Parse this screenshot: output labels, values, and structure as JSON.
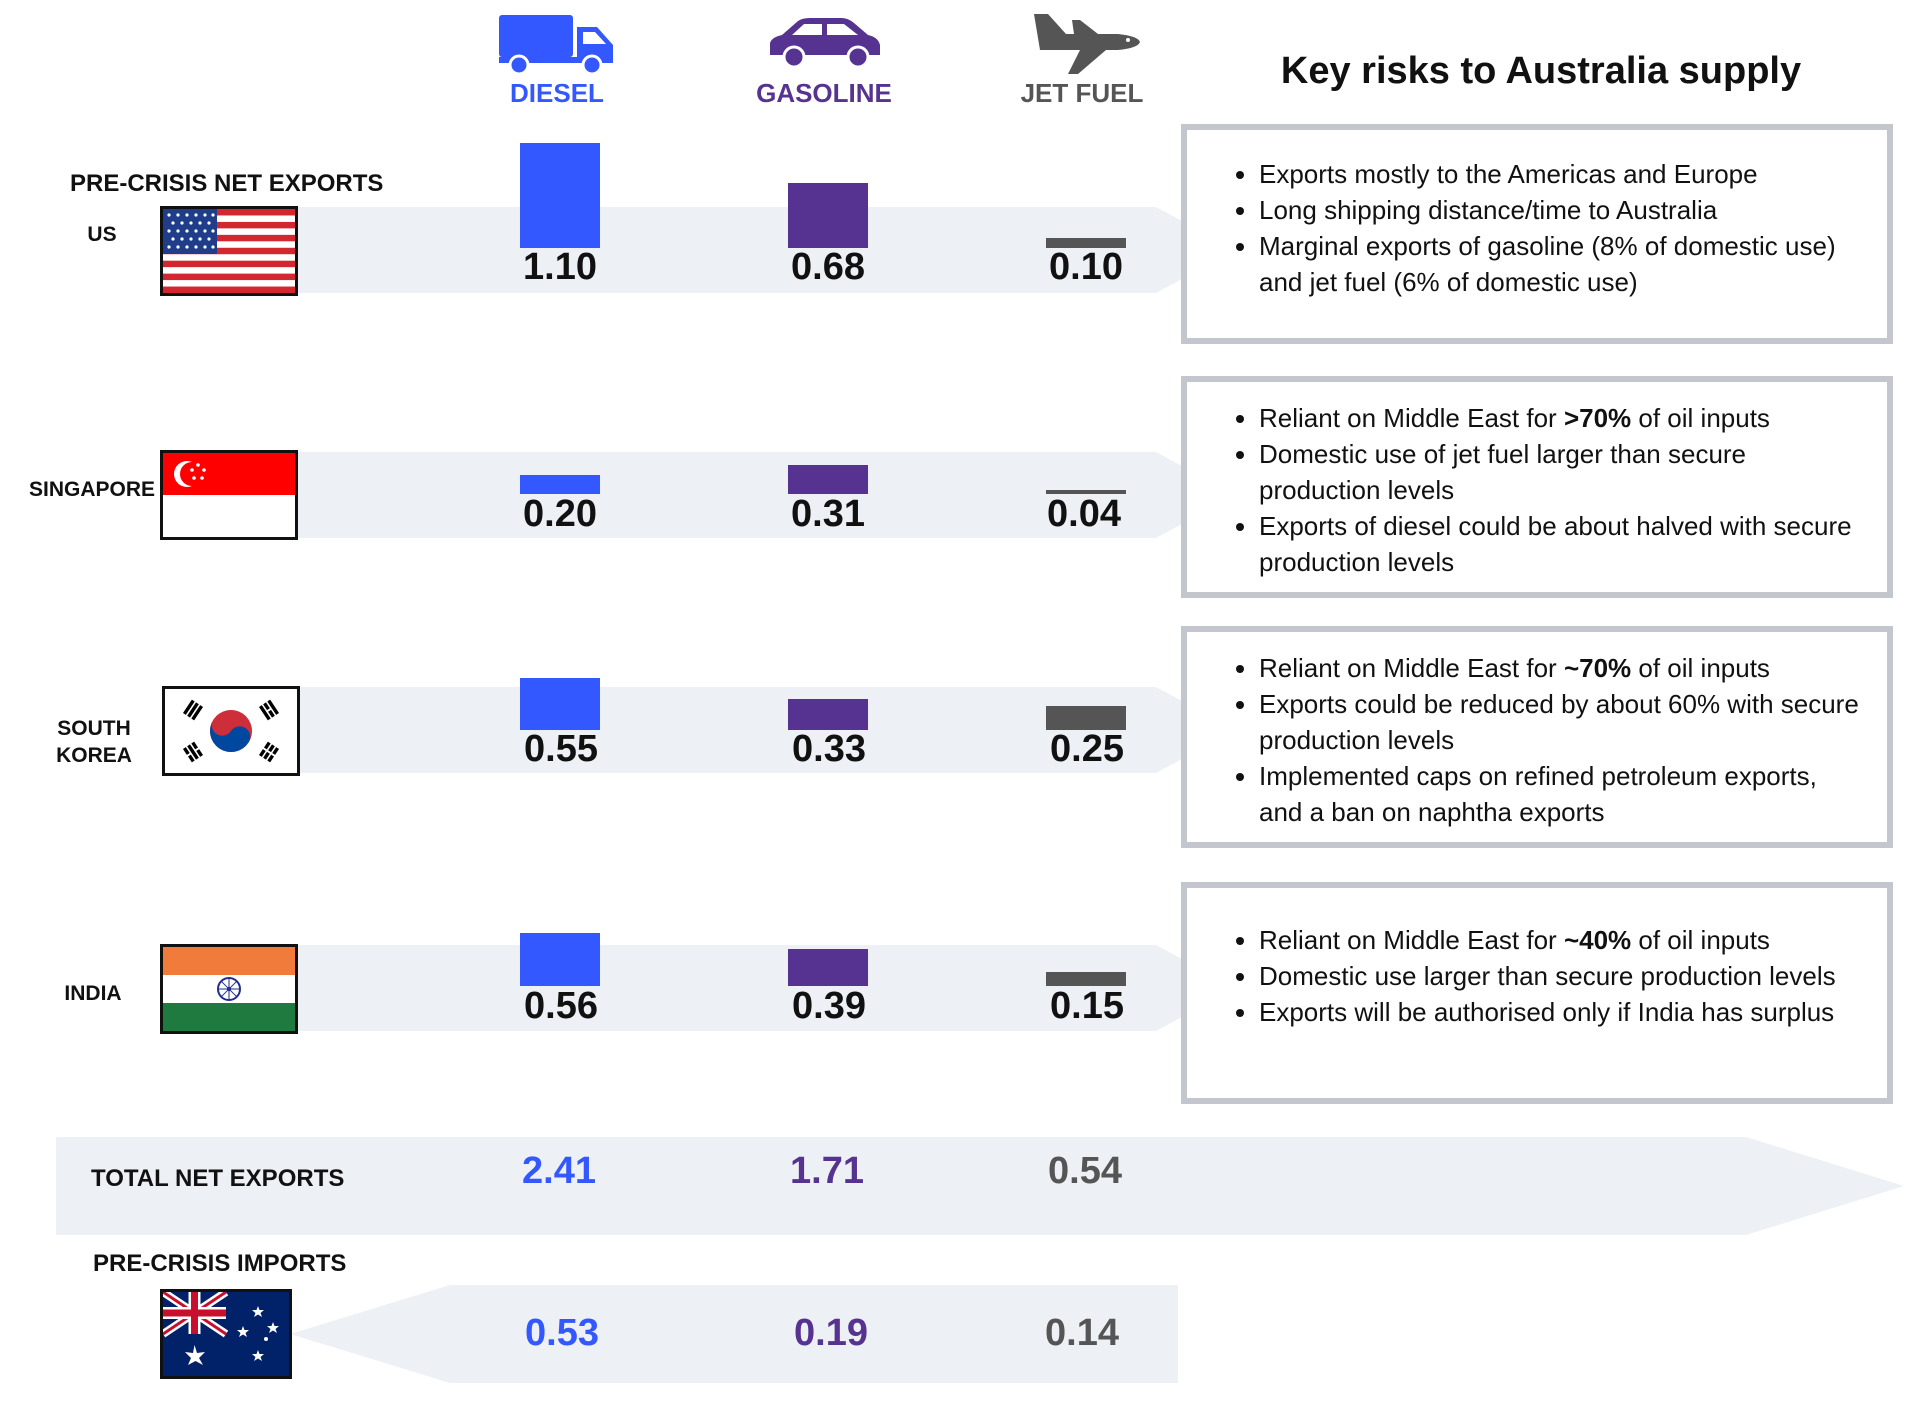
{
  "title": "Key risks to Australia supply",
  "colors": {
    "diesel": "#3358ff",
    "gasoline": "#563291",
    "jet_fuel": "#555555",
    "band": "#edf0f4",
    "box_border": "#c3c7cd"
  },
  "fuels": [
    {
      "key": "diesel",
      "label": "DIESEL",
      "icon": "truck-icon",
      "color": "#3358ff"
    },
    {
      "key": "gasoline",
      "label": "GASOLINE",
      "icon": "car-icon",
      "color": "#563291"
    },
    {
      "key": "jet_fuel",
      "label": "JET FUEL",
      "icon": "plane-icon",
      "color": "#555555"
    }
  ],
  "sections": {
    "net_exports_label": "PRE-CRISIS NET EXPORTS",
    "total_label": "TOTAL NET EXPORTS",
    "imports_label": "PRE-CRISIS IMPORTS"
  },
  "chart_data": {
    "type": "bar",
    "categories": [
      "DIESEL",
      "GASOLINE",
      "JET FUEL"
    ],
    "series": [
      {
        "name": "US",
        "values": [
          1.1,
          0.68,
          0.1
        ],
        "labels": [
          "1.10",
          "0.68",
          "0.10"
        ],
        "flag": "us-flag"
      },
      {
        "name": "SINGAPORE",
        "values": [
          0.2,
          0.31,
          0.04
        ],
        "labels": [
          "0.20",
          "0.31",
          "0.04"
        ],
        "flag": "singapore-flag"
      },
      {
        "name": "SOUTH KOREA",
        "values": [
          0.55,
          0.33,
          0.25
        ],
        "labels": [
          "0.55",
          "0.33",
          "0.25"
        ],
        "flag": "south-korea-flag"
      },
      {
        "name": "INDIA",
        "values": [
          0.56,
          0.39,
          0.15
        ],
        "labels": [
          "0.56",
          "0.39",
          "0.15"
        ],
        "flag": "india-flag"
      }
    ],
    "totals": {
      "values": [
        2.41,
        1.71,
        0.54
      ],
      "labels": [
        "2.41",
        "1.71",
        "0.54"
      ]
    },
    "imports": {
      "name": "Australia",
      "values": [
        0.53,
        0.19,
        0.14
      ],
      "labels": [
        "0.53",
        "0.19",
        "0.14"
      ],
      "flag": "australia-flag"
    }
  },
  "risks": [
    {
      "country": "US",
      "items": [
        {
          "text": "Exports mostly to the Americas and Europe"
        },
        {
          "text": "Long shipping distance/time to Australia"
        },
        {
          "text": "Marginal exports of gasoline (8% of domestic use) and jet fuel (6% of domestic use)"
        }
      ]
    },
    {
      "country": "SINGAPORE",
      "items": [
        {
          "pre": "Reliant on Middle East for ",
          "bold": ">70%",
          "post": " of oil inputs"
        },
        {
          "text": "Domestic use of jet fuel larger than secure production levels"
        },
        {
          "text": "Exports of diesel could be about halved with secure production levels"
        }
      ]
    },
    {
      "country": "SOUTH KOREA",
      "items": [
        {
          "pre": "Reliant on Middle East for ",
          "bold": "~70%",
          "post": " of oil inputs"
        },
        {
          "text": "Exports could be reduced by about 60% with secure production levels"
        },
        {
          "text": "Implemented caps on refined petroleum exports, and a ban on naphtha exports"
        }
      ]
    },
    {
      "country": "INDIA",
      "items": [
        {
          "pre": "Reliant on Middle East for ",
          "bold": "~40%",
          "post": " of oil inputs"
        },
        {
          "text": "Domestic use larger than secure production levels"
        },
        {
          "text": "Exports will be authorised only if India has surplus"
        }
      ]
    }
  ]
}
